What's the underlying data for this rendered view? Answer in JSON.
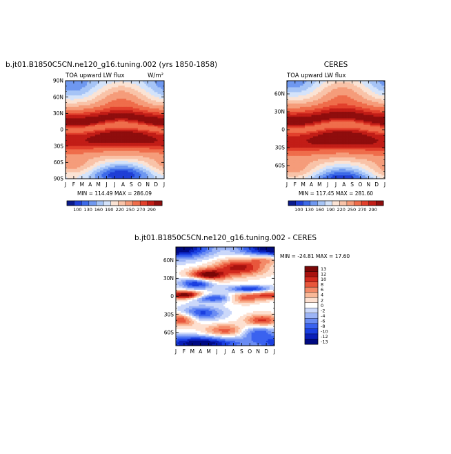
{
  "panels": [
    {
      "id": "model",
      "title": "b.jt01.B1850C5CN.ne120_g16.tuning.002 (yrs 1850-1858)",
      "subtitle": "TOA upward LW flux",
      "units": "W/m²",
      "minmax": "MIN = 114.49   MAX = 286.09",
      "field": "model"
    },
    {
      "id": "obs",
      "title": "CERES",
      "subtitle": "TOA upward LW flux",
      "units": "",
      "minmax": "MIN = 117.45   MAX = 281.60",
      "field": "obs"
    },
    {
      "id": "diff",
      "title": "b.jt01.B1850C5CN.ne120_g16.tuning.002 - CERES",
      "subtitle": "",
      "units": "",
      "minmax": "MIN = -24.81   MAX =  17.60",
      "field": "diff"
    }
  ],
  "chart_data": [
    {
      "type": "heatmap",
      "title": "b.jt01.B1850C5CN.ne120_g16.tuning.002 (yrs 1850-1858)",
      "subtitle": "TOA upward LW flux",
      "x_ticks": [
        "J",
        "F",
        "M",
        "A",
        "M",
        "J",
        "J",
        "A",
        "S",
        "O",
        "N",
        "D",
        "J"
      ],
      "y_ticks": [
        "90N",
        "60N",
        "30N",
        "0",
        "30S",
        "60S",
        "90S"
      ],
      "ylim": [
        -90,
        90
      ],
      "levels": [
        100,
        130,
        160,
        190,
        220,
        250,
        270,
        290
      ],
      "colorbar_labels": [
        "100",
        "130",
        "160",
        "190",
        "220",
        "250",
        "270",
        "290"
      ],
      "min": 114.49,
      "max": 286.09
    },
    {
      "type": "heatmap",
      "title": "CERES",
      "subtitle": "TOA upward LW flux",
      "x_ticks": [
        "J",
        "F",
        "M",
        "A",
        "M",
        "J",
        "J",
        "A",
        "S",
        "O",
        "N",
        "D",
        "J"
      ],
      "y_ticks": [
        "60N",
        "30N",
        "0",
        "30S",
        "60S"
      ],
      "ylim": [
        -82,
        82
      ],
      "levels": [
        100,
        130,
        160,
        190,
        220,
        250,
        270,
        290
      ],
      "colorbar_labels": [
        "100",
        "130",
        "160",
        "190",
        "220",
        "250",
        "270",
        "290"
      ],
      "min": 117.45,
      "max": 281.6
    },
    {
      "type": "heatmap",
      "title": "b.jt01.B1850C5CN.ne120_g16.tuning.002 - CERES",
      "x_ticks": [
        "J",
        "F",
        "M",
        "A",
        "M",
        "J",
        "J",
        "A",
        "S",
        "O",
        "N",
        "D",
        "J"
      ],
      "y_ticks": [
        "60N",
        "30N",
        "0",
        "30S",
        "60S"
      ],
      "ylim": [
        -82,
        82
      ],
      "levels": [
        -13,
        -12,
        -10,
        -8,
        -6,
        -4,
        -2,
        0,
        2,
        4,
        6,
        8,
        10,
        12,
        13
      ],
      "colorbar_labels": [
        "13",
        "12",
        "10",
        "8",
        "6",
        "4",
        "2",
        "0",
        "-2",
        "-4",
        "-6",
        "-8",
        "-10",
        "-12",
        "-13"
      ],
      "min": -24.81,
      "max": 17.6
    }
  ],
  "colors": {
    "abs_scale": [
      "#0a1a8c",
      "#1f3fd6",
      "#3d6ae8",
      "#6f98f0",
      "#a6c4f6",
      "#d4e3fa",
      "#fbe3d4",
      "#f9c3a8",
      "#f59c7a",
      "#ef6d4b",
      "#e2402c",
      "#c21d17",
      "#8f0d0d"
    ],
    "diff_scale": [
      "#000a82",
      "#0a1fb8",
      "#1a3fe0",
      "#3a62ef",
      "#6a8cf3",
      "#9cb4f6",
      "#cbd8fa",
      "#ffffff",
      "#fde0d0",
      "#f9b898",
      "#f38a68",
      "#e8573c",
      "#d22a1e",
      "#a8120f",
      "#7a0707"
    ]
  }
}
